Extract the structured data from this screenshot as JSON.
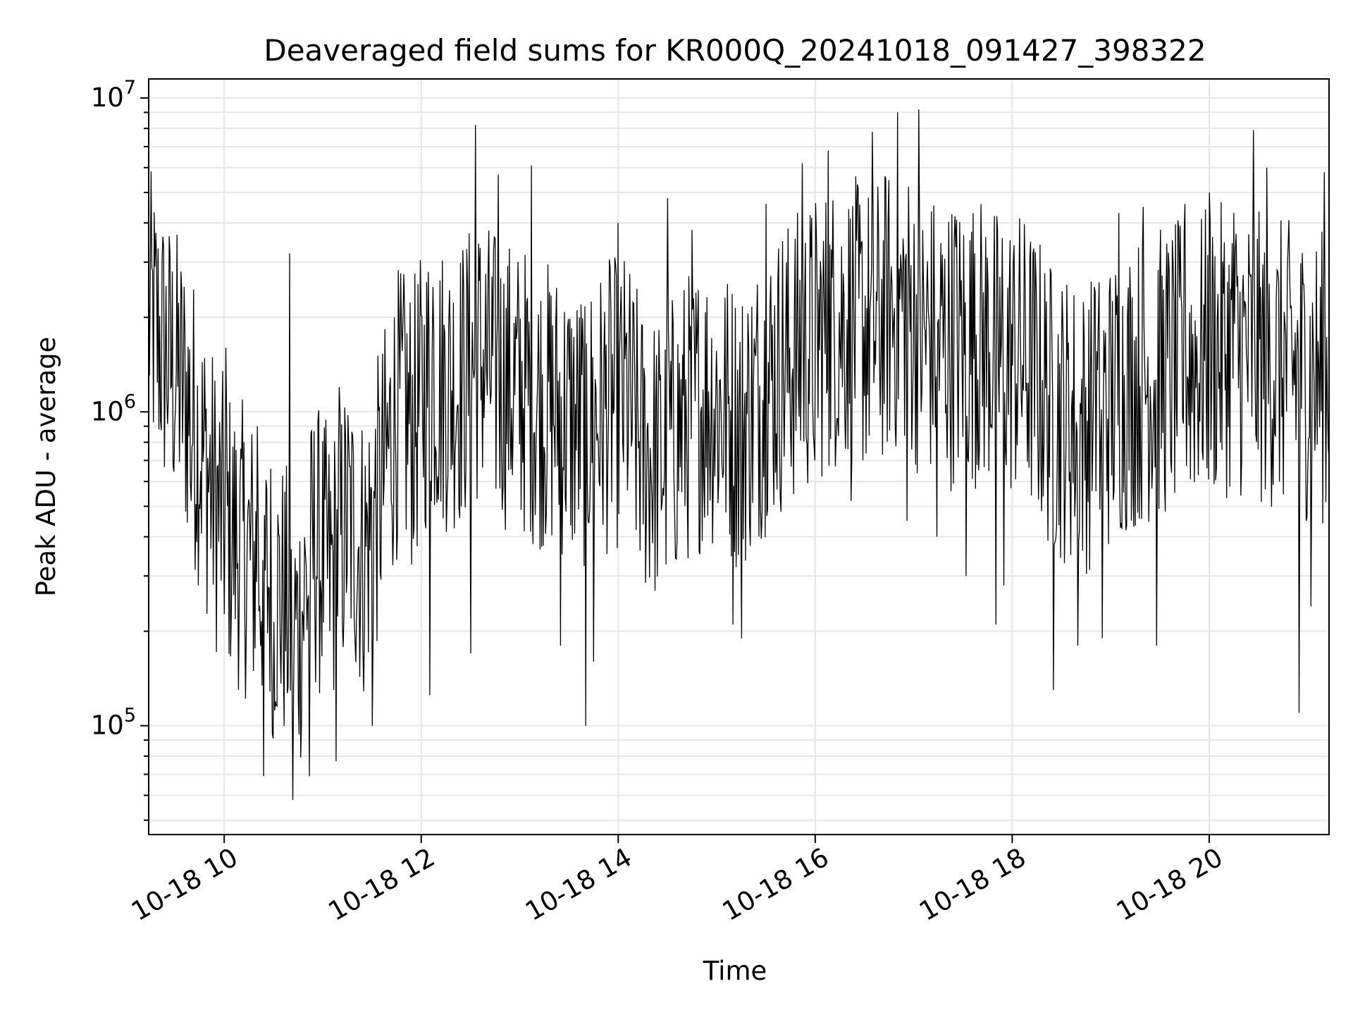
{
  "chart_data": {
    "type": "line",
    "title": "Deaveraged field sums for KR000Q_20241018_091427_398322",
    "xlabel": "Time",
    "ylabel": "Peak ADU - average",
    "y_scale": "log",
    "ylim": [
      45000,
      11500000
    ],
    "xlim": [
      "2024-10-18 09:14",
      "2024-10-18 21:13"
    ],
    "grid": true,
    "line_color": "#000000",
    "grid_color": "#e6e6e6",
    "x_ticks": [
      {
        "value": "2024-10-18 10:00",
        "label": "10-18 10"
      },
      {
        "value": "2024-10-18 12:00",
        "label": "10-18 12"
      },
      {
        "value": "2024-10-18 14:00",
        "label": "10-18 14"
      },
      {
        "value": "2024-10-18 16:00",
        "label": "10-18 16"
      },
      {
        "value": "2024-10-18 18:00",
        "label": "10-18 18"
      },
      {
        "value": "2024-10-18 20:00",
        "label": "10-18 20"
      }
    ],
    "y_ticks": [
      {
        "value": 100000,
        "base": "10",
        "exp": "5"
      },
      {
        "value": 1000000,
        "base": "10",
        "exp": "6"
      },
      {
        "value": 10000000,
        "base": "10",
        "exp": "7"
      }
    ],
    "series": [
      {
        "x": [
          "2024-10-18 09:15",
          "2024-10-18 09:25",
          "2024-10-18 09:35",
          "2024-10-18 09:45",
          "2024-10-18 09:55",
          "2024-10-18 10:05",
          "2024-10-18 10:15",
          "2024-10-18 10:25",
          "2024-10-18 10:35",
          "2024-10-18 10:45",
          "2024-10-18 10:55",
          "2024-10-18 11:05",
          "2024-10-18 11:15",
          "2024-10-18 11:25",
          "2024-10-18 11:35",
          "2024-10-18 11:45",
          "2024-10-18 11:55",
          "2024-10-18 12:05",
          "2024-10-18 12:15",
          "2024-10-18 12:25",
          "2024-10-18 12:35",
          "2024-10-18 12:45",
          "2024-10-18 12:55",
          "2024-10-18 13:05",
          "2024-10-18 13:15",
          "2024-10-18 13:25",
          "2024-10-18 13:35",
          "2024-10-18 13:45",
          "2024-10-18 13:55",
          "2024-10-18 14:05",
          "2024-10-18 14:15",
          "2024-10-18 14:25",
          "2024-10-18 14:35",
          "2024-10-18 14:45",
          "2024-10-18 14:55",
          "2024-10-18 15:05",
          "2024-10-18 15:15",
          "2024-10-18 15:25",
          "2024-10-18 15:35",
          "2024-10-18 15:45",
          "2024-10-18 15:55",
          "2024-10-18 16:05",
          "2024-10-18 16:15",
          "2024-10-18 16:25",
          "2024-10-18 16:35",
          "2024-10-18 16:45",
          "2024-10-18 16:55",
          "2024-10-18 17:05",
          "2024-10-18 17:15",
          "2024-10-18 17:25",
          "2024-10-18 17:35",
          "2024-10-18 17:45",
          "2024-10-18 17:55",
          "2024-10-18 18:05",
          "2024-10-18 18:15",
          "2024-10-18 18:25",
          "2024-10-18 18:35",
          "2024-10-18 18:45",
          "2024-10-18 18:55",
          "2024-10-18 19:05",
          "2024-10-18 19:15",
          "2024-10-18 19:25",
          "2024-10-18 19:35",
          "2024-10-18 19:45",
          "2024-10-18 19:55",
          "2024-10-18 20:05",
          "2024-10-18 20:15",
          "2024-10-18 20:25",
          "2024-10-18 20:35",
          "2024-10-18 20:45",
          "2024-10-18 20:55",
          "2024-10-18 21:05",
          "2024-10-18 21:12"
        ],
        "y": [
          2000000,
          1500000,
          1200000,
          800000,
          500000,
          400000,
          350000,
          300000,
          250000,
          200000,
          380000,
          300000,
          450000,
          350000,
          550000,
          1000000,
          900000,
          1300000,
          1200000,
          1250000,
          1500000,
          1300000,
          1200000,
          1150000,
          1050000,
          1000000,
          900000,
          950000,
          1050000,
          1100000,
          750000,
          700000,
          850000,
          1000000,
          1100000,
          1000000,
          900000,
          1100000,
          1300000,
          1450000,
          1600000,
          1800000,
          1950000,
          1900000,
          1800000,
          2100000,
          2200000,
          1750000,
          1700000,
          1650000,
          1700000,
          1650000,
          1550000,
          1500000,
          1300000,
          1000000,
          950000,
          900000,
          1000000,
          1150000,
          1250000,
          1300000,
          1350000,
          1400000,
          1500000,
          1550000,
          1600000,
          1500000,
          1450000,
          1400000,
          1350000,
          1300000,
          1300000
        ]
      }
    ],
    "spikes": [
      {
        "x": "2024-10-18 09:40",
        "y": 520000
      },
      {
        "x": "2024-10-18 10:01",
        "y": 1600000
      },
      {
        "x": "2024-10-18 10:20",
        "y": 900000
      },
      {
        "x": "2024-10-18 10:24",
        "y": 69000
      },
      {
        "x": "2024-10-18 10:30",
        "y": 91000
      },
      {
        "x": "2024-10-18 10:40",
        "y": 3200000
      },
      {
        "x": "2024-10-18 10:42",
        "y": 58000
      },
      {
        "x": "2024-10-18 10:52",
        "y": 69000
      },
      {
        "x": "2024-10-18 11:08",
        "y": 77000
      },
      {
        "x": "2024-10-18 11:10",
        "y": 1200000
      },
      {
        "x": "2024-10-18 11:30",
        "y": 100000
      },
      {
        "x": "2024-10-18 11:50",
        "y": 2100000
      },
      {
        "x": "2024-10-18 12:05",
        "y": 125000
      },
      {
        "x": "2024-10-18 12:07",
        "y": 2500000
      },
      {
        "x": "2024-10-18 12:30",
        "y": 170000
      },
      {
        "x": "2024-10-18 12:33",
        "y": 8200000
      },
      {
        "x": "2024-10-18 12:47",
        "y": 5700000
      },
      {
        "x": "2024-10-18 13:07",
        "y": 6100000
      },
      {
        "x": "2024-10-18 13:25",
        "y": 180000
      },
      {
        "x": "2024-10-18 13:40",
        "y": 100000
      },
      {
        "x": "2024-10-18 13:45",
        "y": 160000
      },
      {
        "x": "2024-10-18 13:55",
        "y": 2900000
      },
      {
        "x": "2024-10-18 14:00",
        "y": 4000000
      },
      {
        "x": "2024-10-18 14:30",
        "y": 4800000
      },
      {
        "x": "2024-10-18 14:45",
        "y": 3800000
      },
      {
        "x": "2024-10-18 15:10",
        "y": 210000
      },
      {
        "x": "2024-10-18 15:15",
        "y": 190000
      },
      {
        "x": "2024-10-18 15:30",
        "y": 4600000
      },
      {
        "x": "2024-10-18 15:40",
        "y": 3500000
      },
      {
        "x": "2024-10-18 15:52",
        "y": 6200000
      },
      {
        "x": "2024-10-18 16:00",
        "y": 700000
      },
      {
        "x": "2024-10-18 16:08",
        "y": 6800000
      },
      {
        "x": "2024-10-18 16:22",
        "y": 520000
      },
      {
        "x": "2024-10-18 16:35",
        "y": 7800000
      },
      {
        "x": "2024-10-18 16:50",
        "y": 9000000
      },
      {
        "x": "2024-10-18 16:56",
        "y": 450000
      },
      {
        "x": "2024-10-18 17:03",
        "y": 9200000
      },
      {
        "x": "2024-10-18 17:14",
        "y": 400000
      },
      {
        "x": "2024-10-18 17:25",
        "y": 4200000
      },
      {
        "x": "2024-10-18 17:32",
        "y": 300000
      },
      {
        "x": "2024-10-18 17:37",
        "y": 3200000
      },
      {
        "x": "2024-10-18 17:50",
        "y": 210000
      },
      {
        "x": "2024-10-18 17:55",
        "y": 280000
      },
      {
        "x": "2024-10-18 18:25",
        "y": 130000
      },
      {
        "x": "2024-10-18 18:40",
        "y": 180000
      },
      {
        "x": "2024-10-18 18:50",
        "y": 2500000
      },
      {
        "x": "2024-10-18 18:55",
        "y": 190000
      },
      {
        "x": "2024-10-18 19:05",
        "y": 4300000
      },
      {
        "x": "2024-10-18 19:20",
        "y": 4500000
      },
      {
        "x": "2024-10-18 19:28",
        "y": 180000
      },
      {
        "x": "2024-10-18 19:45",
        "y": 4600000
      },
      {
        "x": "2024-10-18 20:00",
        "y": 5000000
      },
      {
        "x": "2024-10-18 20:15",
        "y": 4300000
      },
      {
        "x": "2024-10-18 20:27",
        "y": 7900000
      },
      {
        "x": "2024-10-18 20:35",
        "y": 6000000
      },
      {
        "x": "2024-10-18 20:55",
        "y": 110000
      },
      {
        "x": "2024-10-18 21:02",
        "y": 240000
      },
      {
        "x": "2024-10-18 21:10",
        "y": 5800000
      }
    ]
  }
}
